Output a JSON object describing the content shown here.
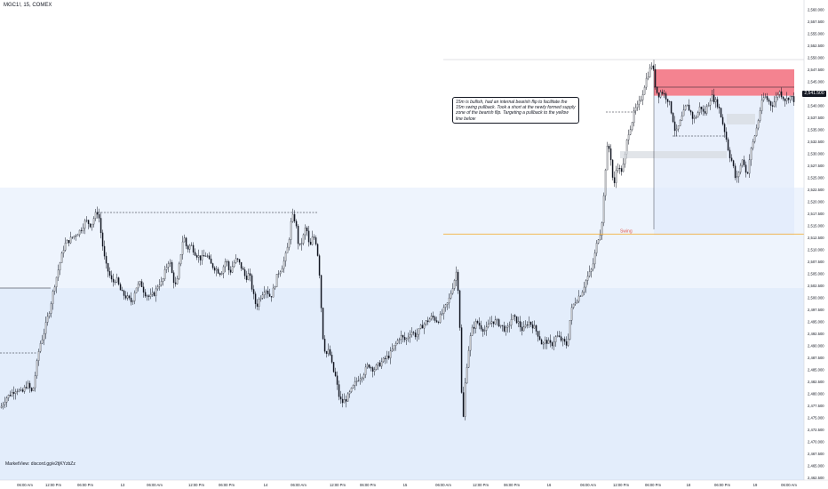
{
  "symbol_title": "MGC1!, 15, COMEX",
  "annotation_text": "15m is bullish, had an internal bearish flip to facilitate the 15m swing pullback. Took a short at the newly formed supply zone of the bearish flip. Targeting a pullback to the yellow line below",
  "swing_label": "Swing",
  "credit_text": "MarketView: discord.gg/e2tjKYzbZz",
  "colors": {
    "up_candle": "#ffffff",
    "down_candle": "#131722",
    "supply_zone": "#f26d7d",
    "target_zone": "#dfeafb",
    "swing_line": "#f5a623",
    "level_line": "#131722"
  },
  "chart_data": {
    "type": "candlestick",
    "title": "MGC1!, 15, COMEX",
    "ylim": [
      2462.5,
      2562.5
    ],
    "y_ticks": [
      "2,560.000",
      "2,557.500",
      "2,555.000",
      "2,552.500",
      "2,550.000",
      "2,547.500",
      "2,545.000",
      "2,542.500",
      "2,540.000",
      "2,537.500",
      "2,535.000",
      "2,532.500",
      "2,530.000",
      "2,527.500",
      "2,525.000",
      "2,522.500",
      "2,520.000",
      "2,517.500",
      "2,515.000",
      "2,512.500",
      "2,510.000",
      "2,507.500",
      "2,505.000",
      "2,502.500",
      "2,500.000",
      "2,497.500",
      "2,495.000",
      "2,492.500",
      "2,490.000",
      "2,487.500",
      "2,485.000",
      "2,482.500",
      "2,480.000",
      "2,477.500",
      "2,475.000",
      "2,472.500",
      "2,470.000",
      "2,467.500",
      "2,465.000",
      "2,462.500"
    ],
    "current_price": "2,541.500",
    "x_ticks": [
      "06:00 Am",
      "12:00 Pm",
      "06:00 Pm",
      "13",
      "06:00 Am",
      "12:00 Pm",
      "06:00 Pm",
      "14",
      "06:00 Am",
      "12:00 Pm",
      "06:00 Pm",
      "15",
      "06:00 Am",
      "12:00 Pm",
      "06:00 Pm",
      "16",
      "06:00 Am",
      "12:00 Pm",
      "06:00 Pm",
      "18",
      "06:00 Pm",
      "19",
      "06:00 Am",
      "12:00 Pm",
      "06:00 Pm"
    ],
    "price_path": [
      [
        0,
        2477
      ],
      [
        6,
        2479
      ],
      [
        12,
        2480
      ],
      [
        18,
        2481
      ],
      [
        24,
        2480
      ],
      [
        30,
        2482
      ],
      [
        36,
        2480
      ],
      [
        40,
        2485
      ],
      [
        44,
        2490
      ],
      [
        48,
        2492
      ],
      [
        52,
        2495
      ],
      [
        56,
        2498
      ],
      [
        60,
        2502
      ],
      [
        64,
        2505
      ],
      [
        68,
        2508
      ],
      [
        72,
        2511
      ],
      [
        78,
        2512
      ],
      [
        84,
        2513
      ],
      [
        90,
        2514
      ],
      [
        96,
        2516
      ],
      [
        102,
        2515
      ],
      [
        106,
        2517
      ],
      [
        110,
        2518
      ],
      [
        114,
        2512
      ],
      [
        118,
        2507
      ],
      [
        122,
        2505
      ],
      [
        126,
        2503
      ],
      [
        130,
        2504
      ],
      [
        136,
        2501
      ],
      [
        142,
        2500
      ],
      [
        148,
        2499
      ],
      [
        152,
        2502
      ],
      [
        158,
        2503
      ],
      [
        162,
        2501
      ],
      [
        168,
        2500
      ],
      [
        174,
        2501
      ],
      [
        178,
        2503
      ],
      [
        182,
        2503
      ],
      [
        186,
        2506
      ],
      [
        190,
        2508
      ],
      [
        194,
        2504
      ],
      [
        198,
        2502
      ],
      [
        202,
        2508
      ],
      [
        206,
        2513
      ],
      [
        210,
        2510
      ],
      [
        214,
        2511
      ],
      [
        220,
        2509
      ],
      [
        226,
        2508
      ],
      [
        232,
        2509
      ],
      [
        236,
        2507
      ],
      [
        242,
        2506
      ],
      [
        248,
        2505
      ],
      [
        254,
        2508
      ],
      [
        258,
        2505
      ],
      [
        262,
        2507
      ],
      [
        266,
        2508
      ],
      [
        272,
        2506
      ],
      [
        276,
        2504
      ],
      [
        280,
        2505
      ],
      [
        284,
        2501
      ],
      [
        288,
        2498
      ],
      [
        292,
        2500
      ],
      [
        298,
        2502
      ],
      [
        304,
        2500
      ],
      [
        308,
        2502
      ],
      [
        312,
        2505
      ],
      [
        316,
        2506
      ],
      [
        320,
        2508
      ],
      [
        324,
        2511
      ],
      [
        328,
        2517
      ],
      [
        332,
        2516
      ],
      [
        336,
        2510
      ],
      [
        340,
        2512
      ],
      [
        344,
        2515
      ],
      [
        348,
        2510
      ],
      [
        352,
        2513
      ],
      [
        356,
        2511
      ],
      [
        360,
        2503
      ],
      [
        362,
        2493
      ],
      [
        366,
        2488
      ],
      [
        370,
        2489
      ],
      [
        374,
        2485
      ],
      [
        378,
        2483
      ],
      [
        380,
        2480
      ],
      [
        384,
        2478
      ],
      [
        390,
        2479
      ],
      [
        396,
        2481
      ],
      [
        402,
        2483
      ],
      [
        408,
        2484
      ],
      [
        414,
        2486
      ],
      [
        420,
        2485
      ],
      [
        426,
        2486
      ],
      [
        432,
        2487
      ],
      [
        438,
        2488
      ],
      [
        444,
        2490
      ],
      [
        450,
        2492
      ],
      [
        456,
        2491
      ],
      [
        462,
        2493
      ],
      [
        468,
        2492
      ],
      [
        474,
        2494
      ],
      [
        480,
        2495
      ],
      [
        486,
        2496
      ],
      [
        492,
        2495
      ],
      [
        498,
        2497
      ],
      [
        504,
        2499
      ],
      [
        510,
        2503
      ],
      [
        514,
        2506
      ],
      [
        518,
        2490
      ],
      [
        520,
        2470
      ],
      [
        522,
        2480
      ],
      [
        526,
        2488
      ],
      [
        530,
        2493
      ],
      [
        536,
        2495
      ],
      [
        540,
        2494
      ],
      [
        546,
        2493
      ],
      [
        552,
        2495
      ],
      [
        558,
        2495
      ],
      [
        564,
        2494
      ],
      [
        570,
        2493
      ],
      [
        576,
        2496
      ],
      [
        582,
        2495
      ],
      [
        588,
        2493
      ],
      [
        594,
        2495
      ],
      [
        600,
        2494
      ],
      [
        606,
        2492
      ],
      [
        610,
        2490
      ],
      [
        614,
        2491
      ],
      [
        620,
        2490
      ],
      [
        626,
        2492
      ],
      [
        632,
        2491
      ],
      [
        638,
        2490
      ],
      [
        642,
        2497
      ],
      [
        646,
        2499
      ],
      [
        650,
        2500
      ],
      [
        654,
        2501
      ],
      [
        660,
        2504
      ],
      [
        666,
        2506
      ],
      [
        672,
        2512
      ],
      [
        676,
        2514
      ],
      [
        678,
        2518
      ],
      [
        682,
        2530
      ],
      [
        684,
        2532
      ],
      [
        688,
        2528
      ],
      [
        690,
        2522
      ],
      [
        694,
        2528
      ],
      [
        698,
        2526
      ],
      [
        702,
        2528
      ],
      [
        706,
        2534
      ],
      [
        710,
        2536
      ],
      [
        714,
        2539
      ],
      [
        718,
        2540
      ],
      [
        722,
        2542
      ],
      [
        726,
        2545
      ],
      [
        730,
        2547
      ],
      [
        734,
        2549
      ],
      [
        736,
        2545
      ],
      [
        740,
        2542
      ],
      [
        744,
        2543
      ],
      [
        748,
        2542
      ],
      [
        752,
        2541
      ],
      [
        756,
        2538
      ],
      [
        760,
        2534
      ],
      [
        764,
        2536
      ],
      [
        768,
        2538
      ],
      [
        772,
        2540
      ],
      [
        776,
        2539
      ],
      [
        780,
        2537
      ],
      [
        784,
        2538
      ],
      [
        788,
        2540
      ],
      [
        792,
        2538
      ],
      [
        796,
        2540
      ],
      [
        800,
        2542
      ],
      [
        804,
        2541
      ],
      [
        808,
        2540
      ],
      [
        812,
        2537
      ],
      [
        816,
        2534
      ],
      [
        820,
        2530
      ],
      [
        824,
        2528
      ],
      [
        828,
        2524
      ],
      [
        832,
        2527
      ],
      [
        836,
        2529
      ],
      [
        840,
        2525
      ],
      [
        844,
        2530
      ],
      [
        848,
        2533
      ],
      [
        852,
        2536
      ],
      [
        856,
        2540
      ],
      [
        860,
        2542
      ],
      [
        864,
        2541
      ],
      [
        868,
        2540
      ],
      [
        872,
        2541
      ],
      [
        876,
        2543
      ],
      [
        880,
        2542
      ],
      [
        884,
        2541
      ],
      [
        888,
        2542
      ],
      [
        894,
        2541
      ]
    ],
    "zones": [
      {
        "name": "supply zone",
        "low": 2542.0,
        "high": 2547.5,
        "x_from": 736,
        "x_to": 894
      },
      {
        "name": "target zone",
        "low": 2513.0,
        "high": 2542.0,
        "x_from": 736,
        "x_to": 894
      }
    ],
    "levels": [
      {
        "name": "Swing",
        "value": 2513.2,
        "x_from": 499,
        "x_to": 905
      }
    ]
  }
}
